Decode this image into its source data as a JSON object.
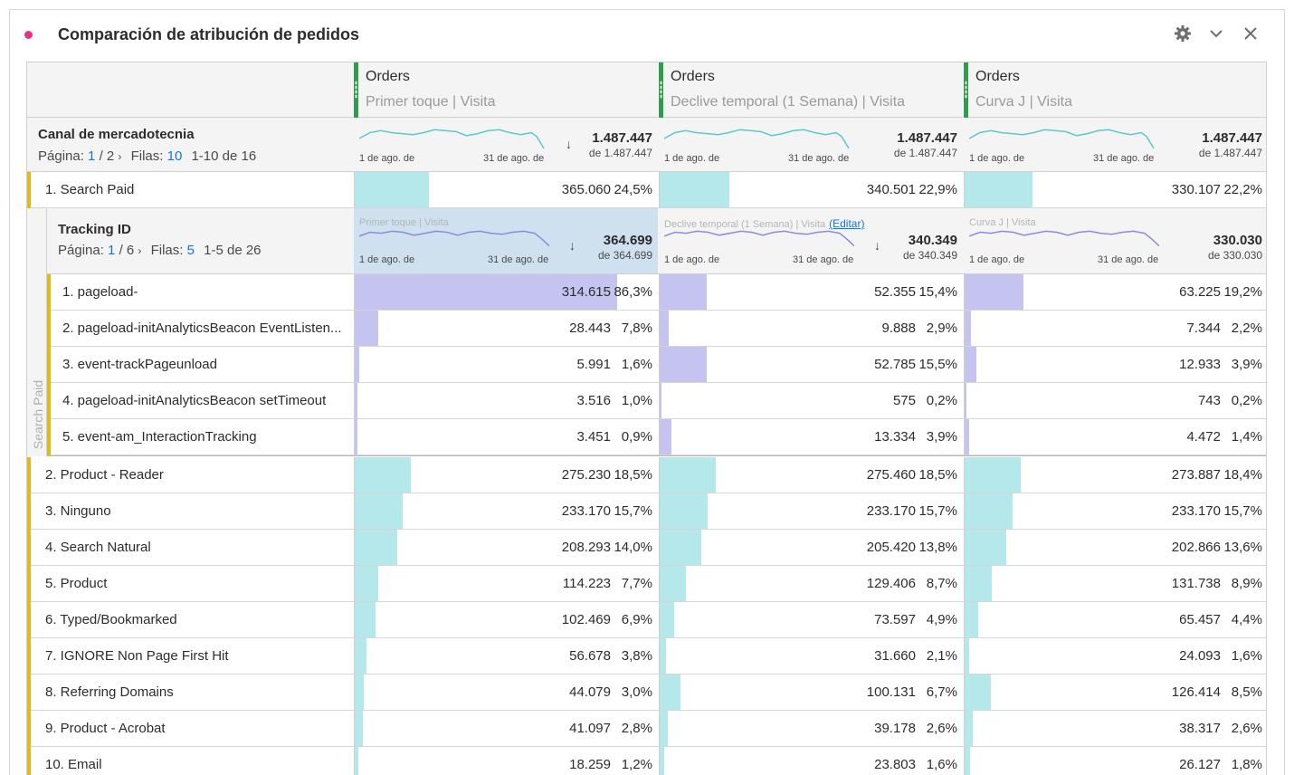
{
  "panel": {
    "title": "Comparación de atribución de pedidos",
    "accent_color": "#e0348f",
    "icons": [
      "gear-icon",
      "chevron-down-icon",
      "close-icon"
    ]
  },
  "columns": [
    {
      "metric": "Orders",
      "model": "Primer toque | Visita",
      "bd_model": "Primer toque | Visita"
    },
    {
      "metric": "Orders",
      "model": "Declive temporal (1 Semana) | Visita",
      "bd_model": "Declive temporal (1 Semana) | Visita"
    },
    {
      "metric": "Orders",
      "model": "Curva J | Visita",
      "bd_model": "Curva J | Visita"
    }
  ],
  "summary": {
    "dimension": "Canal de mercadotecnia",
    "page_label": "Página:",
    "page_current": "1",
    "page_total": "/ 2",
    "rows_label": "Filas:",
    "rows_value": "10",
    "range": "1-10 de 16",
    "spark_start": "1 de ago. de",
    "spark_end": "31 de ago. de",
    "totals": [
      {
        "total": "1.487.447",
        "of": "de 1.487.447"
      },
      {
        "total": "1.487.447",
        "of": "de 1.487.447"
      },
      {
        "total": "1.487.447",
        "of": "de 1.487.447"
      }
    ]
  },
  "breakdown": {
    "side_label": "Search Paid",
    "dimension": "Tracking ID",
    "page_label": "Página:",
    "page_current": "1",
    "page_total": "/ 6",
    "rows_label": "Filas:",
    "rows_value": "5",
    "range": "1-5 de 26",
    "edit_label": "(Editar)",
    "totals": [
      {
        "total": "364.699",
        "of": "de 364.699"
      },
      {
        "total": "340.349",
        "of": "de 340.349"
      },
      {
        "total": "330.030",
        "of": "de 330.030"
      }
    ],
    "rows": [
      {
        "name": "1. pageload-",
        "cells": [
          [
            "314.615",
            "86,3%",
            0.863
          ],
          [
            "52.355",
            "15,4%",
            0.154
          ],
          [
            "63.225",
            "19,2%",
            0.192
          ]
        ]
      },
      {
        "name": "2. pageload-initAnalyticsBeacon EventListen...",
        "cells": [
          [
            "28.443",
            "7,8%",
            0.078
          ],
          [
            "9.888",
            "2,9%",
            0.029
          ],
          [
            "7.344",
            "2,2%",
            0.022
          ]
        ]
      },
      {
        "name": "3. event-trackPageunload",
        "cells": [
          [
            "5.991",
            "1,6%",
            0.016
          ],
          [
            "52.785",
            "15,5%",
            0.155
          ],
          [
            "12.933",
            "3,9%",
            0.039
          ]
        ]
      },
      {
        "name": "4. pageload-initAnalyticsBeacon setTimeout",
        "cells": [
          [
            "3.516",
            "1,0%",
            0.01
          ],
          [
            "575",
            "0,2%",
            0.002
          ],
          [
            "743",
            "0,2%",
            0.002
          ]
        ]
      },
      {
        "name": "5. event-am_InteractionTracking",
        "cells": [
          [
            "3.451",
            "0,9%",
            0.009
          ],
          [
            "13.334",
            "3,9%",
            0.039
          ],
          [
            "4.472",
            "1,4%",
            0.014
          ]
        ]
      }
    ]
  },
  "rows": [
    {
      "name": "1. Search Paid",
      "cells": [
        [
          "365.060",
          "24,5%",
          0.245
        ],
        [
          "340.501",
          "22,9%",
          0.229
        ],
        [
          "330.107",
          "22,2%",
          0.222
        ]
      ]
    },
    {
      "name": "2. Product - Reader",
      "cells": [
        [
          "275.230",
          "18,5%",
          0.185
        ],
        [
          "275.460",
          "18,5%",
          0.185
        ],
        [
          "273.887",
          "18,4%",
          0.184
        ]
      ]
    },
    {
      "name": "3. Ninguno",
      "cells": [
        [
          "233.170",
          "15,7%",
          0.157
        ],
        [
          "233.170",
          "15,7%",
          0.157
        ],
        [
          "233.170",
          "15,7%",
          0.157
        ]
      ]
    },
    {
      "name": "4. Search Natural",
      "cells": [
        [
          "208.293",
          "14,0%",
          0.14
        ],
        [
          "205.420",
          "13,8%",
          0.138
        ],
        [
          "202.866",
          "13,6%",
          0.136
        ]
      ]
    },
    {
      "name": "5. Product",
      "cells": [
        [
          "114.223",
          "7,7%",
          0.077
        ],
        [
          "129.406",
          "8,7%",
          0.087
        ],
        [
          "131.738",
          "8,9%",
          0.089
        ]
      ]
    },
    {
      "name": "6. Typed/Bookmarked",
      "cells": [
        [
          "102.469",
          "6,9%",
          0.069
        ],
        [
          "73.597",
          "4,9%",
          0.049
        ],
        [
          "65.457",
          "4,4%",
          0.044
        ]
      ]
    },
    {
      "name": "7. IGNORE Non Page First Hit",
      "cells": [
        [
          "56.678",
          "3,8%",
          0.038
        ],
        [
          "31.660",
          "2,1%",
          0.021
        ],
        [
          "24.093",
          "1,6%",
          0.016
        ]
      ]
    },
    {
      "name": "8. Referring Domains",
      "cells": [
        [
          "44.079",
          "3,0%",
          0.03
        ],
        [
          "100.131",
          "6,7%",
          0.067
        ],
        [
          "126.414",
          "8,5%",
          0.085
        ]
      ]
    },
    {
      "name": "9. Product - Acrobat",
      "cells": [
        [
          "41.097",
          "2,8%",
          0.028
        ],
        [
          "39.178",
          "2,6%",
          0.026
        ],
        [
          "38.317",
          "2,6%",
          0.026
        ]
      ]
    },
    {
      "name": "10. Email",
      "cells": [
        [
          "18.259",
          "1,2%",
          0.012
        ],
        [
          "23.803",
          "1,6%",
          0.016
        ],
        [
          "26.127",
          "1,8%",
          0.018
        ]
      ]
    }
  ],
  "colors": {
    "bar_teal": "#b4e8ea",
    "bar_purple": "#c5c3ef",
    "row_marker": "#e0b922",
    "column_grip": "#2f9e4a",
    "link": "#1473e6"
  }
}
